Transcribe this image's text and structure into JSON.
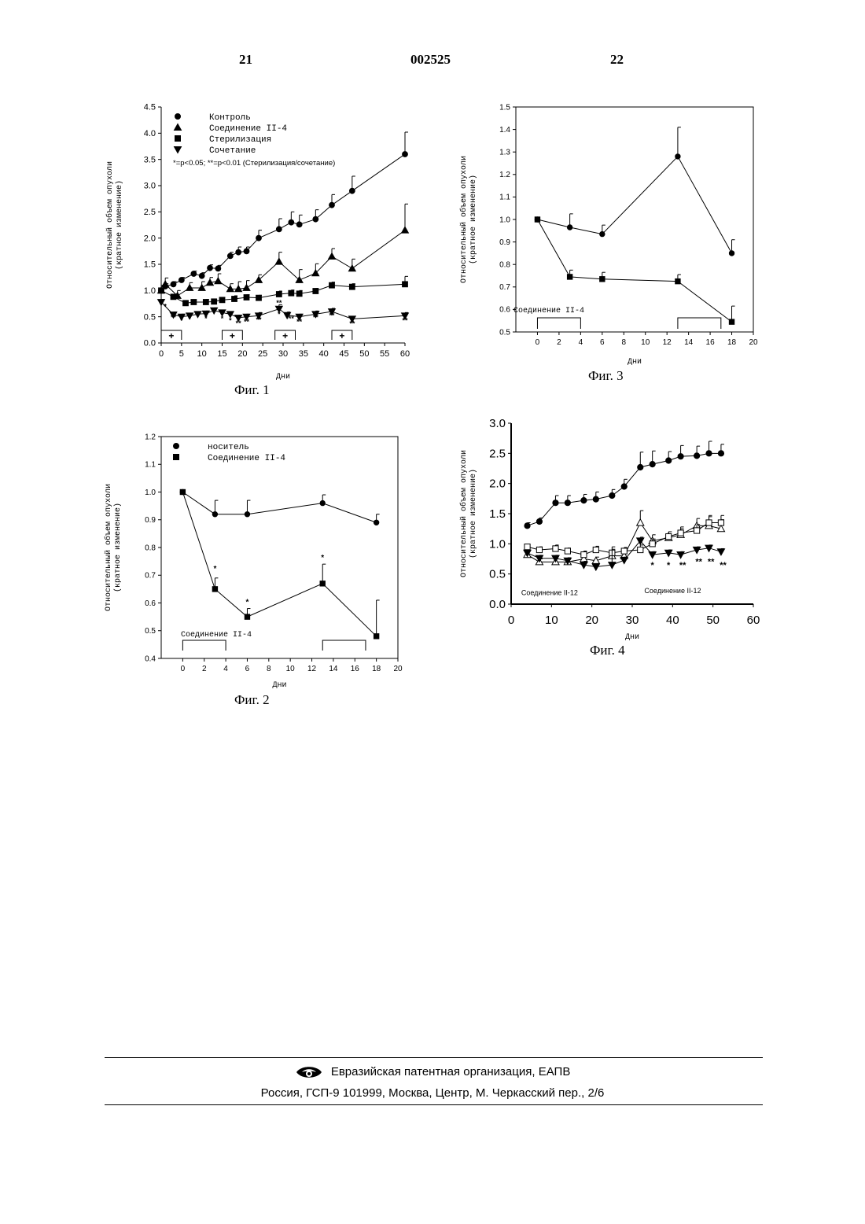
{
  "header": {
    "left_page": "21",
    "doc_number": "002525",
    "right_page": "22"
  },
  "footer": {
    "org": "Евразийская патентная организация, ЕАПВ",
    "address": "Россия, ГСП-9 101999, Москва, Центр, М. Черкасский пер., 2/6"
  },
  "chart_data": [
    {
      "id": "fig1",
      "type": "line",
      "caption": "Фиг. 1",
      "xlabel": "Дни",
      "ylabel": "Относительный объем опухоли (кратное изменение)",
      "xlim": [
        0,
        60
      ],
      "ylim": [
        0,
        4.5
      ],
      "xticks": [
        0,
        5,
        10,
        15,
        20,
        25,
        30,
        35,
        40,
        45,
        50,
        55,
        60
      ],
      "yticks": [
        0.0,
        0.5,
        1.0,
        1.5,
        2.0,
        2.5,
        3.0,
        3.5,
        4.0,
        4.5
      ],
      "legend_position": "top-left",
      "note": "*=p<0.05; **=p<0.01 (Стерилизация/сочетание)",
      "treatment_label": "+",
      "treatment_periods": [
        [
          0,
          5
        ],
        [
          15,
          20
        ],
        [
          28,
          33
        ],
        [
          42,
          47
        ]
      ],
      "series": [
        {
          "name": "Контроль",
          "marker": "circle",
          "x": [
            0,
            1,
            3,
            5,
            8,
            10,
            12,
            14,
            17,
            19,
            21,
            24,
            29,
            32,
            34,
            38,
            42,
            47,
            60
          ],
          "y": [
            1.0,
            1.08,
            1.12,
            1.2,
            1.32,
            1.28,
            1.43,
            1.42,
            1.66,
            1.73,
            1.75,
            2.0,
            2.17,
            2.3,
            2.26,
            2.36,
            2.63,
            2.9,
            3.6
          ],
          "err": [
            0.05,
            0.05,
            0.05,
            0.05,
            0.05,
            0.06,
            0.06,
            0.06,
            0.07,
            0.1,
            0.08,
            0.15,
            0.2,
            0.2,
            0.18,
            0.18,
            0.2,
            0.28,
            0.42
          ]
        },
        {
          "name": "Соединение II-4",
          "marker": "triangle-up",
          "x": [
            0,
            1,
            4,
            7,
            10,
            12,
            14,
            17,
            19,
            21,
            24,
            29,
            34,
            38,
            42,
            47,
            60
          ],
          "y": [
            1.0,
            1.12,
            0.9,
            1.05,
            1.05,
            1.15,
            1.18,
            1.03,
            1.03,
            1.05,
            1.2,
            1.55,
            1.2,
            1.33,
            1.65,
            1.42,
            2.15
          ],
          "err": [
            0.1,
            0.12,
            0.1,
            0.1,
            0.12,
            0.1,
            0.14,
            0.1,
            0.14,
            0.14,
            0.1,
            0.18,
            0.2,
            0.18,
            0.15,
            0.18,
            0.5
          ]
        },
        {
          "name": "Стерилизация",
          "marker": "square",
          "x": [
            0,
            3,
            6,
            8,
            11,
            13,
            15,
            18,
            21,
            24,
            29,
            32,
            34,
            38,
            42,
            47,
            60
          ],
          "y": [
            1.0,
            0.88,
            0.76,
            0.78,
            0.78,
            0.79,
            0.82,
            0.84,
            0.87,
            0.86,
            0.93,
            0.95,
            0.94,
            0.99,
            1.1,
            1.07,
            1.12
          ],
          "err": [
            0.04,
            0.05,
            0.04,
            0.04,
            0.05,
            0.04,
            0.05,
            0.06,
            0.05,
            0.05,
            0.06,
            0.06,
            0.06,
            0.05,
            0.06,
            0.06,
            0.15
          ]
        },
        {
          "name": "Сочетание",
          "marker": "triangle-down",
          "x": [
            0,
            3,
            5,
            7,
            9,
            11,
            13,
            15,
            17,
            19,
            21,
            24,
            29,
            31,
            34,
            38,
            42,
            47,
            60
          ],
          "y": [
            0.78,
            0.54,
            0.5,
            0.52,
            0.55,
            0.56,
            0.62,
            0.58,
            0.55,
            0.48,
            0.5,
            0.52,
            0.65,
            0.53,
            0.5,
            0.55,
            0.6,
            0.46,
            0.52
          ],
          "err": [
            0.05,
            0.05,
            0.05,
            0.05,
            0.05,
            0.05,
            0.05,
            0.05,
            0.05,
            0.05,
            0.05,
            0.06,
            0.08,
            0.06,
            0.05,
            0.06,
            0.06,
            0.05,
            0.06
          ]
        }
      ],
      "significance": [
        {
          "x": 1,
          "y": 0.65,
          "text": "*"
        },
        {
          "x": 3,
          "y": 0.44,
          "text": "**"
        },
        {
          "x": 5,
          "y": 0.38,
          "text": "*"
        },
        {
          "x": 7,
          "y": 0.41,
          "text": "*"
        },
        {
          "x": 11,
          "y": 0.42,
          "text": "*"
        },
        {
          "x": 15,
          "y": 0.42,
          "text": "*"
        },
        {
          "x": 17,
          "y": 0.38,
          "text": "*"
        },
        {
          "x": 19,
          "y": 0.33,
          "text": "**"
        },
        {
          "x": 21,
          "y": 0.36,
          "text": "**"
        },
        {
          "x": 24,
          "y": 0.4,
          "text": "**"
        },
        {
          "x": 29,
          "y": 0.72,
          "text": "**"
        },
        {
          "x": 29,
          "y": 0.5,
          "text": "*"
        },
        {
          "x": 32,
          "y": 0.42,
          "text": "**"
        },
        {
          "x": 34,
          "y": 0.36,
          "text": "**"
        },
        {
          "x": 38,
          "y": 0.44,
          "text": "**"
        },
        {
          "x": 42,
          "y": 0.48,
          "text": "**"
        },
        {
          "x": 47,
          "y": 0.32,
          "text": "**"
        },
        {
          "x": 60,
          "y": 0.38,
          "text": "**"
        }
      ]
    },
    {
      "id": "fig3",
      "type": "line",
      "caption": "Фиг. 3",
      "xlabel": "Дни",
      "ylabel": "Относительный объем опухоли (кратное изменение)",
      "xlim": [
        -2,
        20
      ],
      "ylim": [
        0.5,
        1.5
      ],
      "xticks": [
        0,
        2,
        4,
        6,
        8,
        10,
        12,
        14,
        16,
        18,
        20
      ],
      "yticks": [
        0.5,
        0.6,
        0.7,
        0.8,
        0.9,
        1.0,
        1.1,
        1.2,
        1.3,
        1.4,
        1.5
      ],
      "annotation": "Соединение II-4",
      "treatment_periods": [
        [
          0,
          4
        ],
        [
          13,
          17
        ]
      ],
      "series": [
        {
          "name": "",
          "marker": "circle",
          "x": [
            0,
            3,
            6,
            13,
            18
          ],
          "y": [
            1.0,
            0.965,
            0.935,
            1.28,
            0.85
          ],
          "err": [
            0,
            0.06,
            0.04,
            0.13,
            0.06
          ]
        },
        {
          "name": "",
          "marker": "square",
          "x": [
            0,
            3,
            6,
            13,
            18
          ],
          "y": [
            1.0,
            0.745,
            0.735,
            0.725,
            0.545
          ],
          "err": [
            0,
            0.03,
            0.03,
            0.03,
            0.07
          ]
        }
      ]
    },
    {
      "id": "fig2",
      "type": "line",
      "caption": "Фиг. 2",
      "xlabel": "Дни",
      "ylabel": "Относительный объем опухоли (кратное изменение)",
      "xlim": [
        -2,
        20
      ],
      "ylim": [
        0.4,
        1.2
      ],
      "xticks": [
        0,
        2,
        4,
        6,
        8,
        10,
        12,
        14,
        16,
        18,
        20
      ],
      "yticks": [
        0.4,
        0.5,
        0.6,
        0.7,
        0.8,
        0.9,
        1.0,
        1.1,
        1.2
      ],
      "legend_position": "top-left",
      "annotation": "Соединение II-4",
      "treatment_periods": [
        [
          0,
          4
        ],
        [
          13,
          17
        ]
      ],
      "series": [
        {
          "name": "носитель",
          "marker": "circle",
          "x": [
            0,
            3,
            6,
            13,
            18
          ],
          "y": [
            1.0,
            0.92,
            0.92,
            0.96,
            0.89
          ],
          "err": [
            0,
            0.05,
            0.05,
            0.03,
            0.03
          ]
        },
        {
          "name": "Соединение II-4",
          "marker": "square",
          "x": [
            0,
            3,
            6,
            13,
            18
          ],
          "y": [
            1.0,
            0.65,
            0.55,
            0.67,
            0.48
          ],
          "err": [
            0,
            0.04,
            0.03,
            0.07,
            0.13
          ]
        }
      ],
      "significance": [
        {
          "x": 3,
          "y": 0.715,
          "text": "*"
        },
        {
          "x": 6,
          "y": 0.595,
          "text": "*"
        },
        {
          "x": 13,
          "y": 0.755,
          "text": "*"
        }
      ]
    },
    {
      "id": "fig4",
      "type": "line",
      "caption": "Фиг. 4",
      "xlabel": "Дни",
      "ylabel": "Относительный объем опухоли (кратное изменение)",
      "xlim": [
        0,
        60
      ],
      "ylim": [
        0.0,
        3.0
      ],
      "xticks": [
        0,
        10,
        20,
        30,
        40,
        50,
        60
      ],
      "yticks": [
        0.0,
        0.5,
        1.0,
        1.5,
        2.0,
        2.5,
        3.0
      ],
      "annotations": [
        {
          "x": 2.5,
          "y": 0.15,
          "text": "Соединение II-12"
        },
        {
          "x": 33,
          "y": 0.18,
          "text": "Соединение II-12"
        }
      ],
      "series": [
        {
          "name": "",
          "marker": "circle",
          "x": [
            4,
            7,
            11,
            14,
            18,
            21,
            25,
            28,
            32,
            35,
            39,
            42,
            46,
            49,
            52
          ],
          "y": [
            1.3,
            1.37,
            1.68,
            1.68,
            1.72,
            1.74,
            1.8,
            1.95,
            2.27,
            2.32,
            2.38,
            2.45,
            2.46,
            2.5,
            2.5
          ],
          "err": [
            0.05,
            0.06,
            0.12,
            0.12,
            0.1,
            0.12,
            0.1,
            0.12,
            0.25,
            0.22,
            0.15,
            0.18,
            0.16,
            0.2,
            0.15
          ]
        },
        {
          "name": "",
          "marker": "triangle-up-open",
          "x": [
            4,
            7,
            11,
            14,
            18,
            21,
            25,
            28,
            32,
            35,
            39,
            42,
            46,
            49,
            52
          ],
          "y": [
            0.82,
            0.7,
            0.7,
            0.7,
            0.75,
            0.72,
            0.8,
            0.8,
            1.35,
            1.05,
            1.1,
            1.15,
            1.3,
            1.3,
            1.25
          ],
          "err": [
            0.05,
            0.05,
            0.05,
            0.05,
            0.06,
            0.06,
            0.08,
            0.08,
            0.2,
            0.1,
            0.1,
            0.1,
            0.12,
            0.15,
            0.15
          ]
        },
        {
          "name": "",
          "marker": "square-open",
          "x": [
            4,
            7,
            11,
            14,
            18,
            21,
            25,
            28,
            32,
            35,
            39,
            42,
            46,
            49,
            52
          ],
          "y": [
            0.95,
            0.9,
            0.92,
            0.88,
            0.82,
            0.9,
            0.85,
            0.88,
            0.9,
            1.0,
            1.12,
            1.18,
            1.22,
            1.35,
            1.35
          ],
          "err": [
            0.04,
            0.05,
            0.06,
            0.05,
            0.06,
            0.06,
            0.06,
            0.06,
            0.08,
            0.08,
            0.08,
            0.1,
            0.1,
            0.12,
            0.12
          ]
        },
        {
          "name": "",
          "marker": "triangle-down",
          "x": [
            4,
            7,
            11,
            14,
            18,
            21,
            25,
            28,
            32,
            35,
            39,
            42,
            46,
            49,
            52
          ],
          "y": [
            0.85,
            0.76,
            0.76,
            0.72,
            0.65,
            0.62,
            0.65,
            0.73,
            1.05,
            0.82,
            0.85,
            0.82,
            0.9,
            0.93,
            0.87
          ],
          "err": [
            0.05,
            0.05,
            0.05,
            0.05,
            0.06,
            0.05,
            0.3,
            0.05,
            0.06,
            0.05,
            0.05,
            0.05,
            0.05,
            0.05,
            0.05
          ]
        }
      ],
      "significance": [
        {
          "x": 35,
          "y": 0.6,
          "text": "*"
        },
        {
          "x": 39,
          "y": 0.6,
          "text": "*"
        },
        {
          "x": 42.5,
          "y": 0.6,
          "text": "**"
        },
        {
          "x": 46.5,
          "y": 0.66,
          "text": "**"
        },
        {
          "x": 49.5,
          "y": 0.66,
          "text": "**"
        },
        {
          "x": 52.5,
          "y": 0.6,
          "text": "**"
        }
      ]
    }
  ]
}
